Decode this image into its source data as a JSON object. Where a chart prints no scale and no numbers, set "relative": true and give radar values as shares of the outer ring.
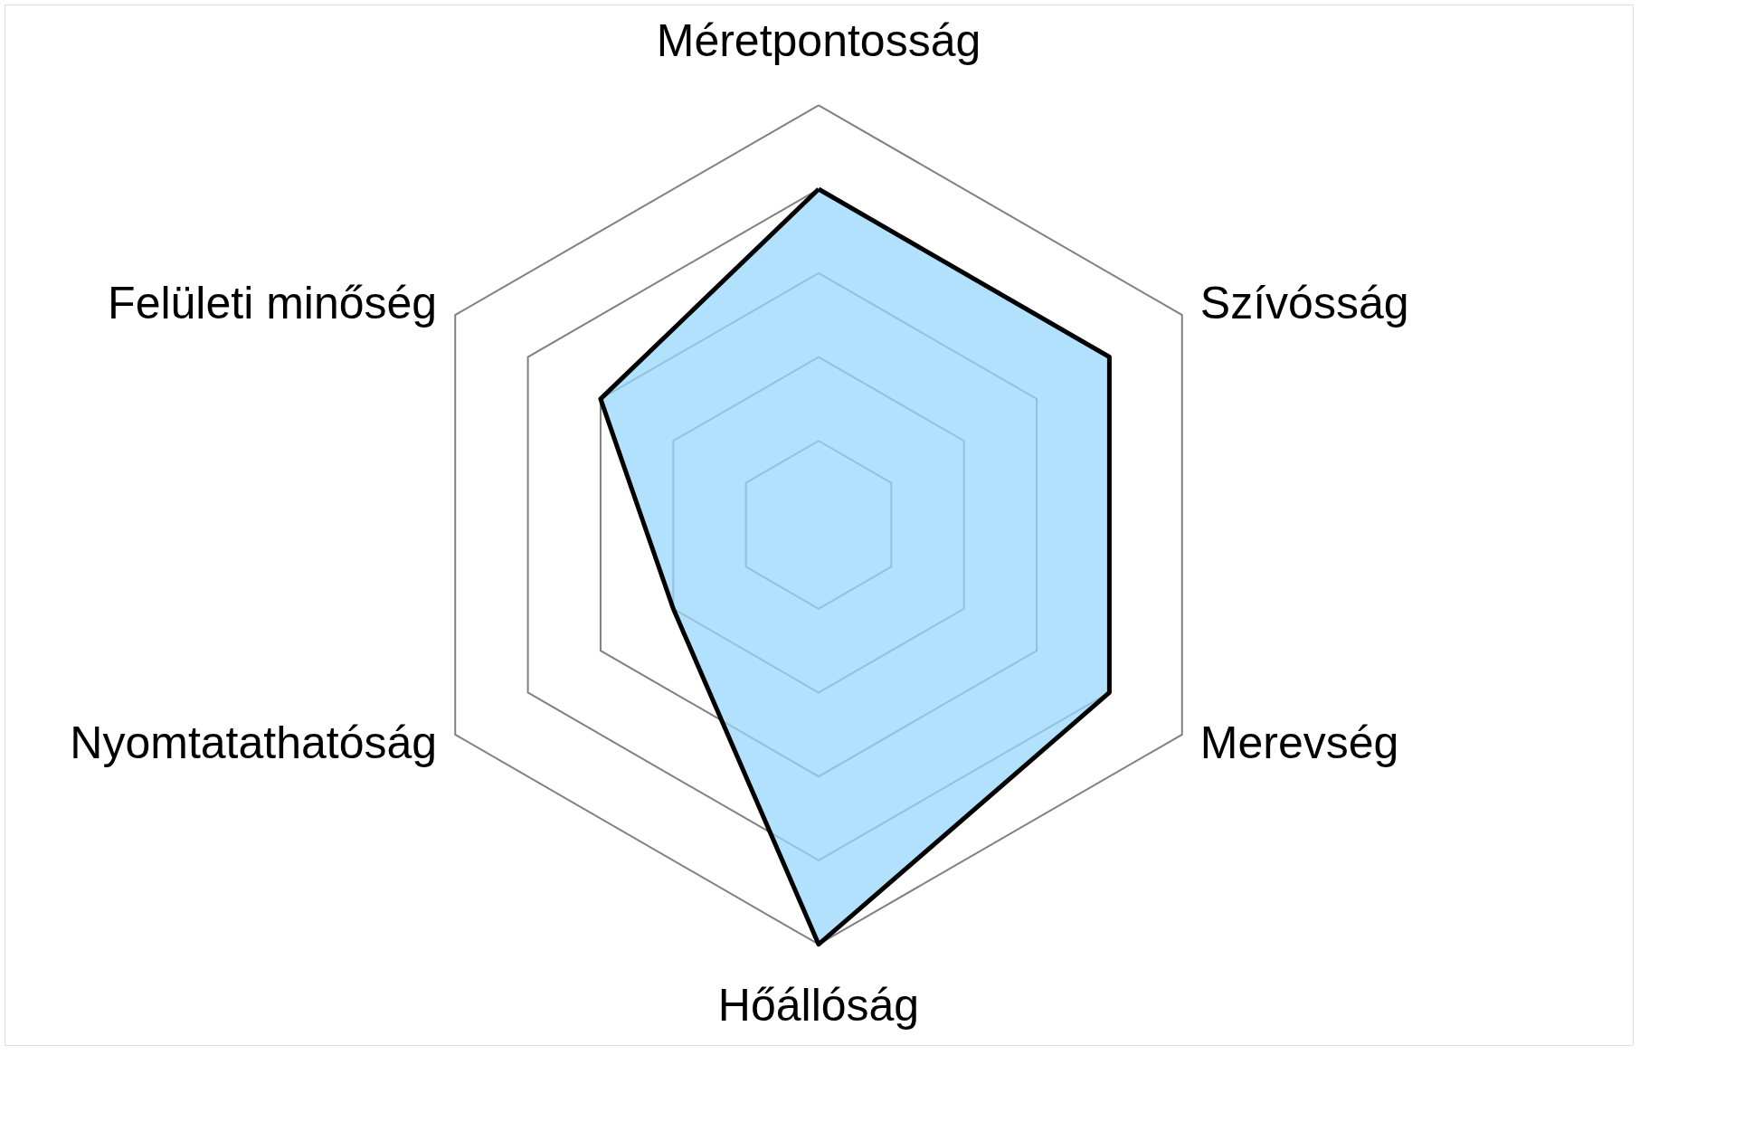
{
  "chart_data": {
    "type": "radar",
    "categories": [
      "Méretpontosság",
      "Szívósság",
      "Merevség",
      "Hőállóság",
      "Nyomtatathatóság",
      "Felületi minőség"
    ],
    "series": [
      {
        "color": "#97d7fb",
        "values": [
          0.8,
          0.8,
          0.8,
          1.0,
          0.4,
          0.6
        ]
      }
    ],
    "relative": true,
    "grid": true
  }
}
